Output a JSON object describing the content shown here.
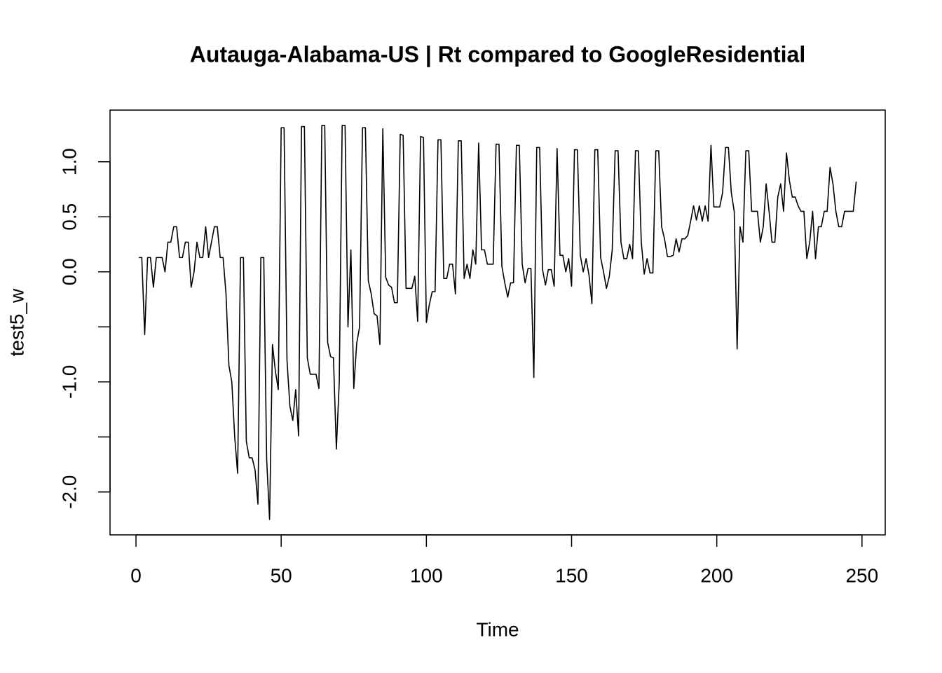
{
  "chart_data": {
    "type": "line",
    "title": "Autauga-Alabama-US | Rt compared to GoogleResidential",
    "x_label": "Time",
    "y_label": "test5_w",
    "color": "#000000",
    "xlim": [
      -8.93,
      258
    ],
    "xticks": [
      0,
      50,
      100,
      150,
      200,
      250
    ],
    "ylim": [
      -2.39,
      1.47
    ],
    "yticks": [
      {
        "value": -2,
        "label": "-2.0"
      },
      {
        "value": -1,
        "label": "-1.0"
      },
      {
        "value": 0,
        "label": "0.0"
      },
      0.5,
      {
        "value": 1,
        "label": "1.0"
      }
    ],
    "yticks_unlabeled": [
      -1.5,
      -0.5
    ],
    "values": [
      0.13,
      0.13,
      -0.57,
      0.13,
      0.13,
      -0.14,
      0.13,
      0.13,
      0.13,
      0,
      0.27,
      0.27,
      0.41,
      0.41,
      0.13,
      0.13,
      0.27,
      0.27,
      -0.14,
      0,
      0.27,
      0.13,
      0.13,
      0.41,
      0.13,
      0.27,
      0.41,
      0.41,
      0.13,
      0.13,
      -0.2,
      -0.85,
      -1.0,
      -1.5,
      -1.83,
      0.13,
      0.13,
      -1.54,
      -1.69,
      -1.69,
      -1.8,
      -2.11,
      0.13,
      0.13,
      -1.7,
      -2.25,
      -0.66,
      -0.9,
      -1.07,
      1.31,
      1.31,
      -0.8,
      -1.22,
      -1.35,
      -1.07,
      -1.49,
      1.32,
      1.32,
      -0.78,
      -0.93,
      -0.93,
      -0.93,
      -1.06,
      1.33,
      1.33,
      -0.64,
      -0.77,
      -0.78,
      -1.61,
      -1.0,
      1.33,
      1.33,
      -0.5,
      0.2,
      -1.06,
      -0.65,
      -0.5,
      1.31,
      1.31,
      -0.08,
      -0.2,
      -0.38,
      -0.4,
      -0.66,
      1.3,
      -0.05,
      -0.12,
      -0.14,
      -0.28,
      -0.28,
      1.25,
      1.24,
      -0.15,
      -0.15,
      -0.15,
      -0.04,
      -0.45,
      1.23,
      1.22,
      -0.46,
      -0.3,
      -0.18,
      -0.18,
      1.2,
      1.2,
      -0.06,
      -0.06,
      0.07,
      0.07,
      -0.2,
      1.19,
      1.19,
      -0.06,
      0.07,
      -0.06,
      0.2,
      0.07,
      1.17,
      0.2,
      0.2,
      0.07,
      0.07,
      0.07,
      1.16,
      1.16,
      0.05,
      -0.1,
      -0.23,
      -0.1,
      -0.1,
      1.15,
      1.15,
      0.07,
      -0.1,
      0.03,
      0.03,
      -0.96,
      1.13,
      1.13,
      0.02,
      -0.12,
      0.02,
      0.02,
      -0.13,
      1.12,
      0.15,
      0.15,
      0,
      0.12,
      -0.13,
      1.11,
      1.11,
      0.15,
      0,
      0.12,
      -0.03,
      -0.29,
      1.11,
      1.11,
      0.13,
      0,
      -0.15,
      -0.04,
      0.2,
      1.1,
      1.1,
      0.27,
      0.12,
      0.12,
      0.25,
      0.12,
      1.1,
      1.1,
      0.27,
      -0.02,
      0.12,
      -0.01,
      -0.01,
      1.1,
      1.1,
      0.41,
      0.3,
      0.14,
      0.14,
      0.15,
      0.3,
      0.18,
      0.3,
      0.3,
      0.33,
      0.46,
      0.6,
      0.47,
      0.6,
      0.46,
      0.6,
      0.46,
      1.15,
      0.59,
      0.59,
      0.59,
      0.72,
      1.13,
      1.13,
      0.72,
      0.55,
      -0.7,
      0.41,
      0.27,
      1.1,
      1.1,
      0.55,
      0.55,
      0.55,
      0.27,
      0.41,
      0.8,
      0.55,
      0.27,
      0.27,
      0.68,
      0.8,
      0.55,
      1.08,
      0.83,
      0.68,
      0.68,
      0.6,
      0.55,
      0.55,
      0.12,
      0.27,
      0.55,
      0.12,
      0.41,
      0.41,
      0.55,
      0.55,
      0.95,
      0.8,
      0.55,
      0.41,
      0.41,
      0.55,
      0.55,
      0.55,
      0.55,
      0.82
    ]
  }
}
